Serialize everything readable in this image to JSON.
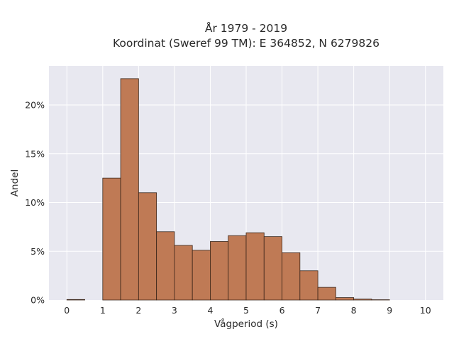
{
  "chart_data": {
    "type": "bar",
    "title_line1": "År 1979 - 2019",
    "title_line2": "Koordinat (Sweref 99 TM): E 364852, N 6279826",
    "xlabel": "Vågperiod (s)",
    "ylabel": "Andel",
    "xlim": [
      -0.5,
      10.5
    ],
    "ylim": [
      0,
      24.0
    ],
    "x_ticks": [
      0,
      1,
      2,
      3,
      4,
      5,
      6,
      7,
      8,
      9,
      10
    ],
    "y_ticks": [
      0,
      5,
      10,
      15,
      20
    ],
    "y_tick_labels": [
      "0%",
      "5%",
      "10%",
      "15%",
      "20%"
    ],
    "bin_width": 0.5,
    "bins": [
      {
        "start": 0.0,
        "end": 0.5,
        "value": 0.05
      },
      {
        "start": 0.5,
        "end": 1.0,
        "value": 0.0
      },
      {
        "start": 1.0,
        "end": 1.5,
        "value": 12.5
      },
      {
        "start": 1.5,
        "end": 2.0,
        "value": 22.7
      },
      {
        "start": 2.0,
        "end": 2.5,
        "value": 11.0
      },
      {
        "start": 2.5,
        "end": 3.0,
        "value": 7.0
      },
      {
        "start": 3.0,
        "end": 3.5,
        "value": 5.6
      },
      {
        "start": 3.5,
        "end": 4.0,
        "value": 5.1
      },
      {
        "start": 4.0,
        "end": 4.5,
        "value": 6.0
      },
      {
        "start": 4.5,
        "end": 5.0,
        "value": 6.6
      },
      {
        "start": 5.0,
        "end": 5.5,
        "value": 6.9
      },
      {
        "start": 5.5,
        "end": 6.0,
        "value": 6.5
      },
      {
        "start": 6.0,
        "end": 6.5,
        "value": 4.85
      },
      {
        "start": 6.5,
        "end": 7.0,
        "value": 3.0
      },
      {
        "start": 7.0,
        "end": 7.5,
        "value": 1.3
      },
      {
        "start": 7.5,
        "end": 8.0,
        "value": 0.25
      },
      {
        "start": 8.0,
        "end": 8.5,
        "value": 0.1
      },
      {
        "start": 8.5,
        "end": 9.0,
        "value": 0.03
      }
    ],
    "grid": true,
    "colors": {
      "bar_fill": "#bf7a55",
      "bar_stroke": "#3a2519",
      "plot_bg": "#e8e8f0",
      "grid": "#ffffff"
    }
  }
}
